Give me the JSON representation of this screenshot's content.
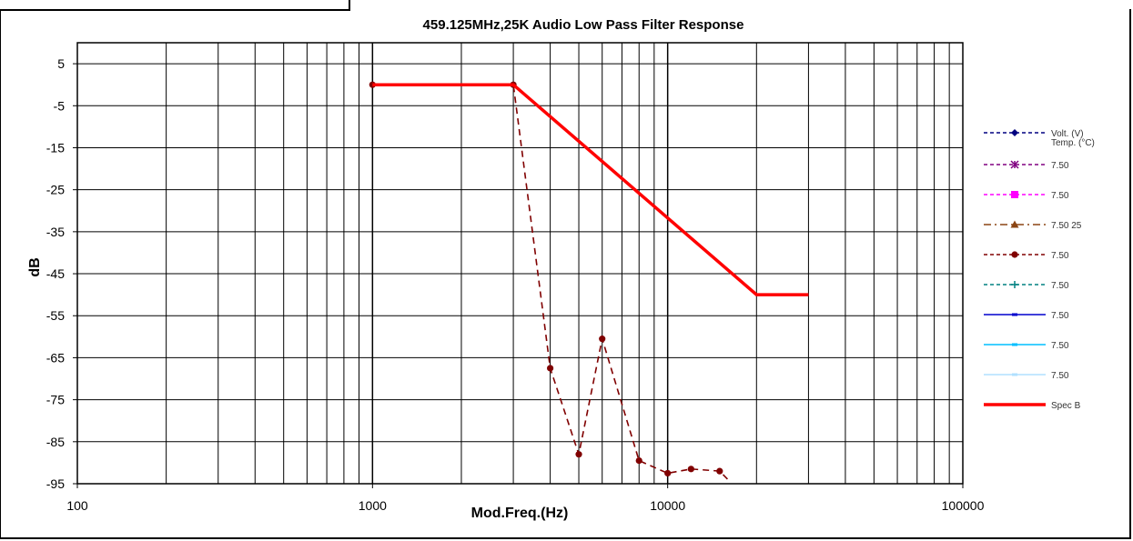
{
  "chart_data": {
    "type": "line",
    "title": "459.125MHz,25K Audio Low Pass Filter Response",
    "xlabel": "Mod.Freq.(Hz)",
    "ylabel": "dB",
    "xscale": "log",
    "xlim": [
      100,
      100000
    ],
    "ylim": [
      -95,
      10
    ],
    "x_tick_labels": [
      "100",
      "1000",
      "10000",
      "100000"
    ],
    "y_tick_labels": [
      "5",
      "-5",
      "-15",
      "-25",
      "-35",
      "-45",
      "-55",
      "-65",
      "-75",
      "-85",
      "-95"
    ],
    "grid": true,
    "legend_position": "right",
    "series": [
      {
        "name": "Volt. (V)",
        "color": "#000080",
        "style": "dashed",
        "marker": "diamond",
        "x": [],
        "y": []
      },
      {
        "name": "7.50",
        "color": "#800080",
        "style": "dashed",
        "marker": "star",
        "x": [],
        "y": []
      },
      {
        "name": "7.50",
        "color": "#ff00ff",
        "style": "dashed",
        "marker": "square",
        "x": [],
        "y": []
      },
      {
        "name": "7.50 25",
        "color": "#8b4513",
        "style": "dashdot",
        "marker": "triangle",
        "x": [],
        "y": []
      },
      {
        "name": "7.50",
        "color": "#800000",
        "style": "dashed",
        "marker": "circle",
        "x": [
          1000,
          3000,
          4000,
          5000,
          6000,
          8000,
          10000,
          12000,
          15000,
          16000
        ],
        "y": [
          0,
          0,
          -67.5,
          -88,
          -60.5,
          -89.5,
          -92.5,
          -91.5,
          -92,
          -94
        ]
      },
      {
        "name": "7.50",
        "color": "#008080",
        "style": "dashed",
        "marker": "plus",
        "x": [],
        "y": []
      },
      {
        "name": "7.50",
        "color": "#0000cd",
        "style": "solid",
        "marker": "dash",
        "x": [],
        "y": []
      },
      {
        "name": "7.50",
        "color": "#00bfff",
        "style": "solid",
        "marker": "dash",
        "x": [],
        "y": []
      },
      {
        "name": "7.50",
        "color": "#b0e0ff",
        "style": "solid",
        "marker": "dash",
        "x": [],
        "y": []
      },
      {
        "name": "Spec B",
        "color": "#ff0000",
        "style": "solid",
        "marker": "none",
        "x": [
          1000,
          3000,
          20000,
          30000
        ],
        "y": [
          0,
          0,
          -50,
          -50
        ]
      }
    ],
    "legend_extra": "Temp. (°C)"
  }
}
